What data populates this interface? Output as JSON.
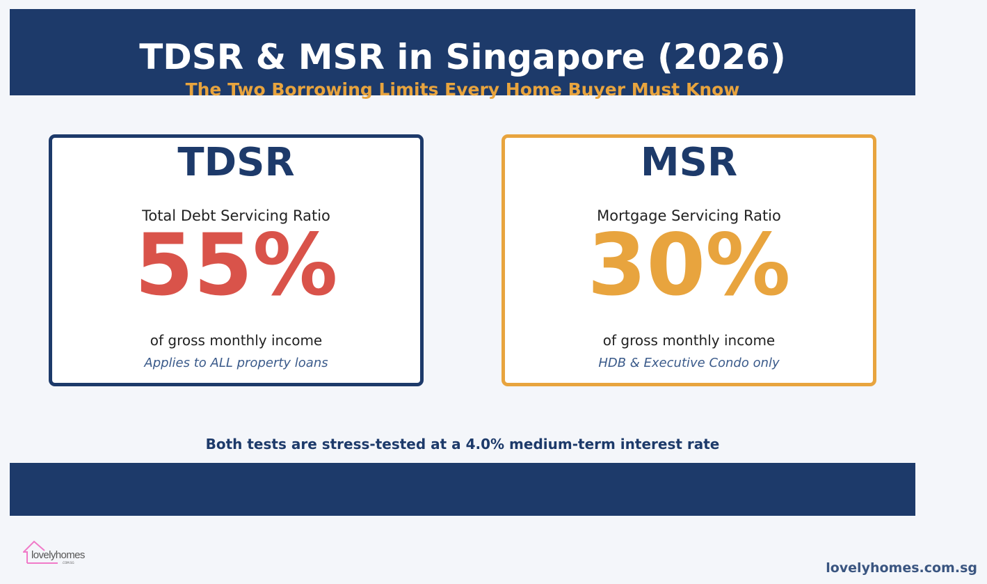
{
  "header": {
    "title": "TDSR & MSR in Singapore (2026)",
    "subtitle": "The Two Borrowing Limits Every Home Buyer Must Know"
  },
  "cards": [
    {
      "abbr": "TDSR",
      "full": "Total Debt Servicing Ratio",
      "percent": "55%",
      "desc": "of gross monthly income",
      "note": "Applies to ALL property loans",
      "percent_color": "#d9534a",
      "border_color": "#1d3a6a"
    },
    {
      "abbr": "MSR",
      "full": "Mortgage Servicing Ratio",
      "percent": "30%",
      "desc": "of gross monthly income",
      "note": "HDB & Executive Condo only",
      "percent_color": "#e8a43e",
      "border_color": "#e8a43e"
    }
  ],
  "footnote": "Both tests are stress-tested at a 4.0% medium-term interest rate",
  "logo": {
    "text": "lovelyhomes",
    "sub": ".COM.SG",
    "icon": "house-outline-icon",
    "color": "#f07ac8"
  },
  "url": "lovelyhomes.com.sg",
  "colors": {
    "navy": "#1d3a6a",
    "orange": "#e8a43e",
    "red": "#d9534a",
    "background": "#f4f6fa"
  }
}
